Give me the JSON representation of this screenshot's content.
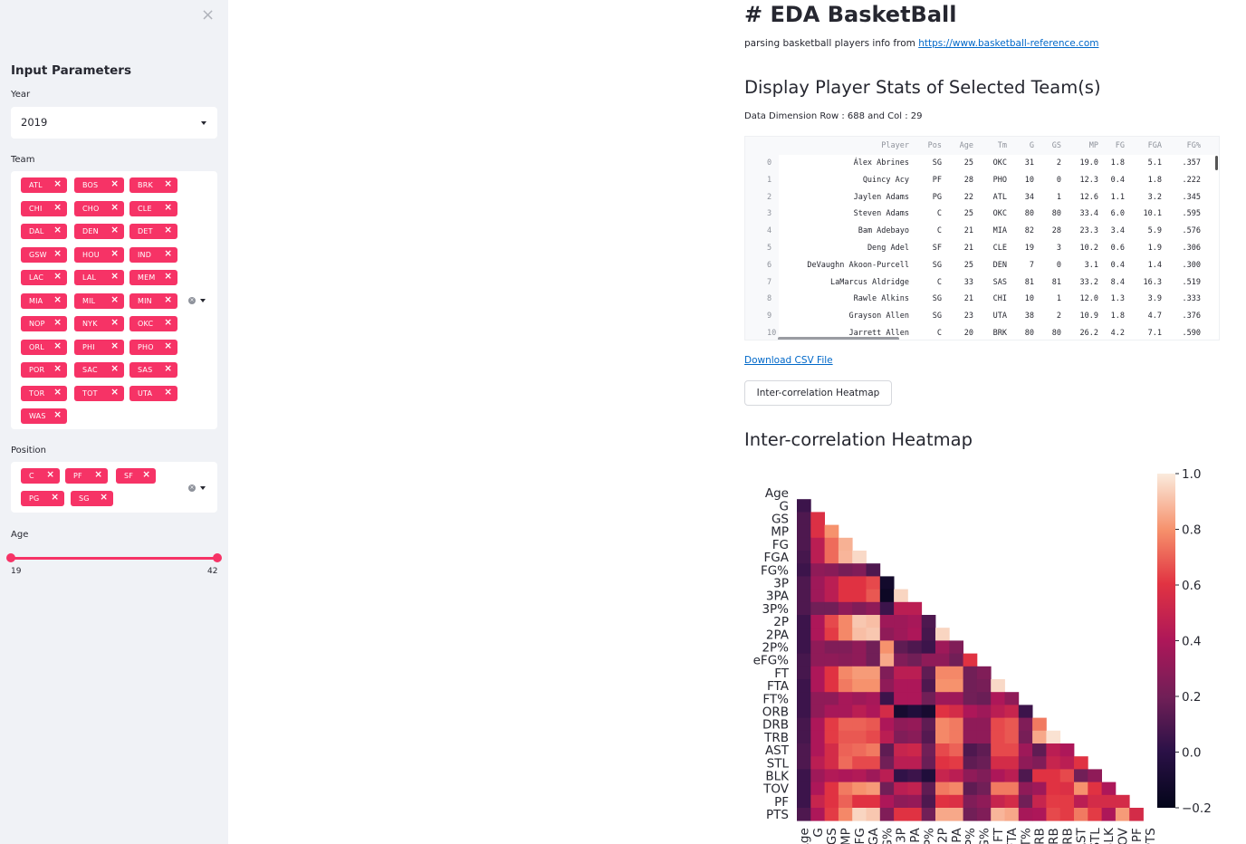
{
  "sidebar": {
    "close_glyph": "×",
    "title": "Input Parameters",
    "year_label": "Year",
    "year_value": "2019",
    "team_label": "Team",
    "teams": [
      "ATL",
      "BOS",
      "BRK",
      "CHI",
      "CHO",
      "CLE",
      "DAL",
      "DEN",
      "DET",
      "GSW",
      "HOU",
      "IND",
      "LAC",
      "LAL",
      "MEM",
      "MIA",
      "MIL",
      "MIN",
      "NOP",
      "NYK",
      "OKC",
      "ORL",
      "PHI",
      "PHO",
      "POR",
      "SAC",
      "SAS",
      "TOR",
      "TOT",
      "UTA",
      "WAS"
    ],
    "position_label": "Position",
    "positions": [
      "C",
      "PF",
      "SF",
      "PG",
      "SG"
    ],
    "age_label": "Age",
    "age_min": "19",
    "age_max": "42",
    "accent_color": "#f63366"
  },
  "main": {
    "title": "# EDA BasketBall",
    "description_prefix": "parsing basketball players info from ",
    "description_link": "https://www.basketball-reference.com",
    "stats_header": "Display Player Stats of Selected Team(s)",
    "dimension_text": "Data Dimension Row : 688 and Col : 29",
    "download_link": "Download CSV File",
    "heatmap_button": "Inter-correlation Heatmap",
    "heatmap_header": "Inter-correlation Heatmap"
  },
  "table": {
    "columns": [
      "Player",
      "Pos",
      "Age",
      "Tm",
      "G",
      "GS",
      "MP",
      "FG",
      "FGA",
      "FG%"
    ],
    "rows": [
      [
        "0",
        "Álex Abrines",
        "SG",
        "25",
        "OKC",
        "31",
        "2",
        "19.0",
        "1.8",
        "5.1",
        ".357"
      ],
      [
        "1",
        "Quincy Acy",
        "PF",
        "28",
        "PHO",
        "10",
        "0",
        "12.3",
        "0.4",
        "1.8",
        ".222"
      ],
      [
        "2",
        "Jaylen Adams",
        "PG",
        "22",
        "ATL",
        "34",
        "1",
        "12.6",
        "1.1",
        "3.2",
        ".345"
      ],
      [
        "3",
        "Steven Adams",
        "C",
        "25",
        "OKC",
        "80",
        "80",
        "33.4",
        "6.0",
        "10.1",
        ".595"
      ],
      [
        "4",
        "Bam Adebayo",
        "C",
        "21",
        "MIA",
        "82",
        "28",
        "23.3",
        "3.4",
        "5.9",
        ".576"
      ],
      [
        "5",
        "Deng Adel",
        "SF",
        "21",
        "CLE",
        "19",
        "3",
        "10.2",
        "0.6",
        "1.9",
        ".306"
      ],
      [
        "6",
        "DeVaughn Akoon-Purcell",
        "SG",
        "25",
        "DEN",
        "7",
        "0",
        "3.1",
        "0.4",
        "1.4",
        ".300"
      ],
      [
        "7",
        "LaMarcus Aldridge",
        "C",
        "33",
        "SAS",
        "81",
        "81",
        "33.2",
        "8.4",
        "16.3",
        ".519"
      ],
      [
        "8",
        "Rawle Alkins",
        "SG",
        "21",
        "CHI",
        "10",
        "1",
        "12.0",
        "1.3",
        "3.9",
        ".333"
      ],
      [
        "9",
        "Grayson Allen",
        "SG",
        "23",
        "UTA",
        "38",
        "2",
        "10.9",
        "1.8",
        "4.7",
        ".376"
      ],
      [
        "10",
        "Jarrett Allen",
        "C",
        "20",
        "BRK",
        "80",
        "80",
        "26.2",
        "4.2",
        "7.1",
        ".590"
      ]
    ]
  },
  "chart_data": {
    "type": "heatmap",
    "title": "",
    "variables": [
      "Age",
      "G",
      "GS",
      "MP",
      "FG",
      "FGA",
      "FG%",
      "3P",
      "3PA",
      "3P%",
      "2P",
      "2PA",
      "2P%",
      "eFG%",
      "FT",
      "FTA",
      "FT%",
      "ORB",
      "DRB",
      "TRB",
      "AST",
      "STL",
      "BLK",
      "TOV",
      "PF",
      "PTS"
    ],
    "mask": "upper triangle (including diagonal) hidden",
    "colorbar": {
      "min": -0.2,
      "max": 1.0,
      "ticks": [
        "1.0",
        "0.8",
        "0.6",
        "0.4",
        "0.2",
        "0.0",
        "−0.2"
      ],
      "colormap": "rocket"
    },
    "lower_triangle_rows": [
      [],
      [
        0.05
      ],
      [
        0.1,
        0.58
      ],
      [
        0.1,
        0.58,
        0.8
      ],
      [
        0.1,
        0.45,
        0.72,
        0.87
      ],
      [
        0.08,
        0.45,
        0.72,
        0.88,
        0.96
      ],
      [
        0.05,
        0.3,
        0.28,
        0.22,
        0.25,
        0.1
      ],
      [
        0.1,
        0.35,
        0.45,
        0.6,
        0.6,
        0.65,
        -0.12
      ],
      [
        0.1,
        0.35,
        0.45,
        0.6,
        0.6,
        0.68,
        -0.15,
        0.95
      ],
      [
        0.1,
        0.2,
        0.2,
        0.3,
        0.25,
        0.3,
        0.05,
        0.45,
        0.45
      ],
      [
        0.05,
        0.4,
        0.65,
        0.78,
        0.92,
        0.9,
        0.35,
        0.35,
        0.38,
        0.1
      ],
      [
        0.05,
        0.4,
        0.62,
        0.78,
        0.9,
        0.92,
        0.3,
        0.35,
        0.4,
        0.08,
        0.95
      ],
      [
        0.05,
        0.3,
        0.25,
        0.25,
        0.3,
        0.2,
        0.8,
        0.15,
        0.1,
        0.05,
        0.35,
        0.25
      ],
      [
        0.08,
        0.3,
        0.3,
        0.28,
        0.3,
        0.2,
        0.85,
        0.25,
        0.2,
        0.3,
        0.3,
        0.2,
        0.6
      ],
      [
        0.08,
        0.4,
        0.6,
        0.78,
        0.82,
        0.82,
        0.25,
        0.45,
        0.45,
        0.15,
        0.78,
        0.78,
        0.2,
        0.25
      ],
      [
        0.05,
        0.4,
        0.6,
        0.75,
        0.8,
        0.8,
        0.3,
        0.4,
        0.4,
        0.1,
        0.8,
        0.8,
        0.2,
        0.22,
        0.96
      ],
      [
        0.05,
        0.3,
        0.3,
        0.38,
        0.35,
        0.38,
        0.05,
        0.4,
        0.4,
        0.2,
        0.35,
        0.35,
        0.2,
        0.18,
        0.4,
        0.3
      ],
      [
        0.05,
        0.3,
        0.38,
        0.38,
        0.45,
        0.4,
        0.55,
        -0.1,
        -0.05,
        -0.1,
        0.6,
        0.55,
        0.4,
        0.35,
        0.45,
        0.5,
        0.05
      ],
      [
        0.08,
        0.4,
        0.62,
        0.7,
        0.7,
        0.68,
        0.4,
        0.3,
        0.32,
        0.15,
        0.78,
        0.75,
        0.3,
        0.3,
        0.65,
        0.68,
        0.25,
        0.75
      ],
      [
        0.08,
        0.4,
        0.62,
        0.68,
        0.68,
        0.65,
        0.45,
        0.25,
        0.28,
        0.12,
        0.78,
        0.75,
        0.3,
        0.3,
        0.65,
        0.68,
        0.22,
        0.85,
        0.98
      ],
      [
        0.1,
        0.4,
        0.55,
        0.7,
        0.72,
        0.75,
        0.15,
        0.5,
        0.52,
        0.2,
        0.65,
        0.7,
        0.1,
        0.15,
        0.65,
        0.65,
        0.35,
        0.15,
        0.45,
        0.4
      ],
      [
        0.1,
        0.45,
        0.55,
        0.72,
        0.65,
        0.65,
        0.2,
        0.45,
        0.45,
        0.18,
        0.6,
        0.62,
        0.15,
        0.18,
        0.55,
        0.55,
        0.3,
        0.25,
        0.5,
        0.45,
        0.6
      ],
      [
        0.05,
        0.35,
        0.42,
        0.4,
        0.42,
        0.35,
        0.45,
        0.02,
        0.05,
        -0.05,
        0.5,
        0.45,
        0.3,
        0.25,
        0.4,
        0.45,
        0.1,
        0.6,
        0.6,
        0.65,
        0.2,
        0.3
      ],
      [
        0.05,
        0.4,
        0.6,
        0.75,
        0.8,
        0.82,
        0.2,
        0.45,
        0.48,
        0.15,
        0.75,
        0.78,
        0.15,
        0.2,
        0.75,
        0.75,
        0.3,
        0.35,
        0.6,
        0.58,
        0.8,
        0.6,
        0.4
      ],
      [
        0.05,
        0.5,
        0.6,
        0.7,
        0.6,
        0.6,
        0.4,
        0.3,
        0.32,
        0.1,
        0.6,
        0.58,
        0.25,
        0.3,
        0.5,
        0.55,
        0.2,
        0.5,
        0.62,
        0.62,
        0.45,
        0.55,
        0.55,
        0.55
      ],
      [
        0.1,
        0.4,
        0.62,
        0.78,
        0.95,
        0.92,
        0.25,
        0.6,
        0.6,
        0.2,
        0.85,
        0.85,
        0.2,
        0.25,
        0.88,
        0.85,
        0.38,
        0.4,
        0.65,
        0.62,
        0.75,
        0.62,
        0.4,
        0.82,
        0.55
      ]
    ]
  }
}
